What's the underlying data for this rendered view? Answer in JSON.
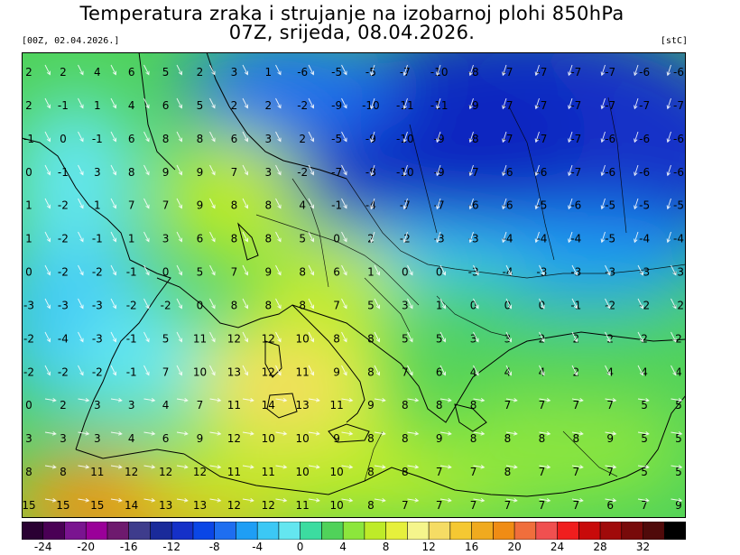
{
  "header": {
    "title_line1": "Temperatura zraka i strujanje na izobarnoj plohi 850hPa",
    "title_line2": "07Z, srijeda, 08.04.2026.",
    "run_label": "[00Z, 02.04.2026.]",
    "unit_label": "[stC]"
  },
  "legend": {
    "tick_labels": [
      "-24",
      "-20",
      "-16",
      "-12",
      "-8",
      "-4",
      "0",
      "4",
      "8",
      "12",
      "16",
      "20",
      "24",
      "28",
      "32"
    ],
    "colors": [
      "#2a0033",
      "#4a0055",
      "#7a1490",
      "#9a0099",
      "#6e1a6e",
      "#3e3c8c",
      "#1a2a9a",
      "#1530c8",
      "#0a46e6",
      "#1e6ef0",
      "#1e9ef5",
      "#3cc8f5",
      "#64e6f0",
      "#3cdca0",
      "#50d25a",
      "#8ce63c",
      "#beeb28",
      "#e6f03c",
      "#f5f58c",
      "#f5dc64",
      "#f5c832",
      "#f0aa1e",
      "#f08c14",
      "#f06e3c",
      "#f05050",
      "#f01e1e",
      "#c80a0a",
      "#a00a0a",
      "#780a0a",
      "#500a0a",
      "#000000"
    ]
  },
  "chart_data": {
    "type": "heatmap",
    "title": "Temperatura zraka i strujanje na izobarnoj plohi 850hPa",
    "subtitle": "07Z, srijeda, 08.04.2026.",
    "unit": "stC",
    "colorbar_range": [
      -24,
      32
    ],
    "value_labels": [
      {
        "row": 0,
        "values": [
          "2",
          "2",
          "4",
          "6",
          "5",
          "2",
          "3",
          "1",
          "-6",
          "-5",
          "-5",
          "-7",
          "-10",
          "-8",
          "-7",
          "-7",
          "-7",
          "-7",
          "-6",
          "-6"
        ]
      },
      {
        "row": 1,
        "values": [
          "2",
          "-1",
          "1",
          "4",
          "6",
          "5",
          "2",
          "2",
          "-2",
          "-9",
          "-10",
          "-11",
          "-11",
          "-9",
          "-7",
          "-7",
          "-7",
          "-7",
          "-7",
          "-7"
        ]
      },
      {
        "row": 2,
        "values": [
          "-1",
          "0",
          "-1",
          "6",
          "8",
          "8",
          "6",
          "3",
          "2",
          "-5",
          "-9",
          "-10",
          "-9",
          "-8",
          "-7",
          "-7",
          "-7",
          "-6",
          "-6",
          "-6"
        ]
      },
      {
        "row": 3,
        "values": [
          "0",
          "-1",
          "3",
          "8",
          "9",
          "9",
          "7",
          "3",
          "-2",
          "-7",
          "-8",
          "-10",
          "-9",
          "-7",
          "-6",
          "-6",
          "-7",
          "-6",
          "-6",
          "-6"
        ]
      },
      {
        "row": 4,
        "values": [
          "1",
          "-2",
          "1",
          "7",
          "7",
          "9",
          "8",
          "8",
          "4",
          "-1",
          "-4",
          "-7",
          "-7",
          "-6",
          "-6",
          "-5",
          "-6",
          "-5",
          "-5",
          "-5"
        ]
      },
      {
        "row": 5,
        "values": [
          "1",
          "-2",
          "-1",
          "1",
          "3",
          "6",
          "8",
          "8",
          "5",
          "0",
          "2",
          "-2",
          "-3",
          "-3",
          "-4",
          "-4",
          "-4",
          "-5",
          "-4",
          "-4"
        ]
      },
      {
        "row": 6,
        "values": [
          "0",
          "-2",
          "-2",
          "-1",
          "0",
          "5",
          "7",
          "9",
          "8",
          "6",
          "1",
          "0",
          "0",
          "-3",
          "-4",
          "-3",
          "-3",
          "-3",
          "-3",
          "-3"
        ]
      },
      {
        "row": 7,
        "values": [
          "-3",
          "-3",
          "-3",
          "-2",
          "-2",
          "0",
          "8",
          "8",
          "8",
          "7",
          "5",
          "3",
          "1",
          "0",
          "0",
          "0",
          "-1",
          "-2",
          "-2",
          "-2"
        ]
      },
      {
        "row": 8,
        "values": [
          "-2",
          "-4",
          "-3",
          "-1",
          "5",
          "11",
          "12",
          "12",
          "10",
          "8",
          "8",
          "5",
          "5",
          "3",
          "3",
          "2",
          "2",
          "2",
          "2",
          "2"
        ]
      },
      {
        "row": 9,
        "values": [
          "-2",
          "-2",
          "-2",
          "-1",
          "7",
          "10",
          "13",
          "12",
          "11",
          "9",
          "8",
          "7",
          "6",
          "4",
          "4",
          "4",
          "2",
          "4",
          "4",
          "4"
        ]
      },
      {
        "row": 10,
        "values": [
          "0",
          "2",
          "3",
          "3",
          "4",
          "7",
          "11",
          "14",
          "13",
          "11",
          "9",
          "8",
          "8",
          "8",
          "7",
          "7",
          "7",
          "7",
          "5",
          "5"
        ]
      },
      {
        "row": 11,
        "values": [
          "3",
          "3",
          "3",
          "4",
          "6",
          "9",
          "12",
          "10",
          "10",
          "9",
          "8",
          "8",
          "9",
          "8",
          "8",
          "8",
          "8",
          "9",
          "5",
          "5"
        ]
      },
      {
        "row": 12,
        "values": [
          "8",
          "8",
          "11",
          "12",
          "12",
          "12",
          "11",
          "11",
          "10",
          "10",
          "8",
          "8",
          "7",
          "7",
          "8",
          "7",
          "7",
          "7",
          "5",
          "5"
        ]
      },
      {
        "row": 13,
        "values": [
          "15",
          "15",
          "15",
          "14",
          "13",
          "13",
          "12",
          "12",
          "11",
          "10",
          "8",
          "7",
          "7",
          "7",
          "7",
          "7",
          "7",
          "6",
          "7",
          "9"
        ]
      }
    ]
  }
}
